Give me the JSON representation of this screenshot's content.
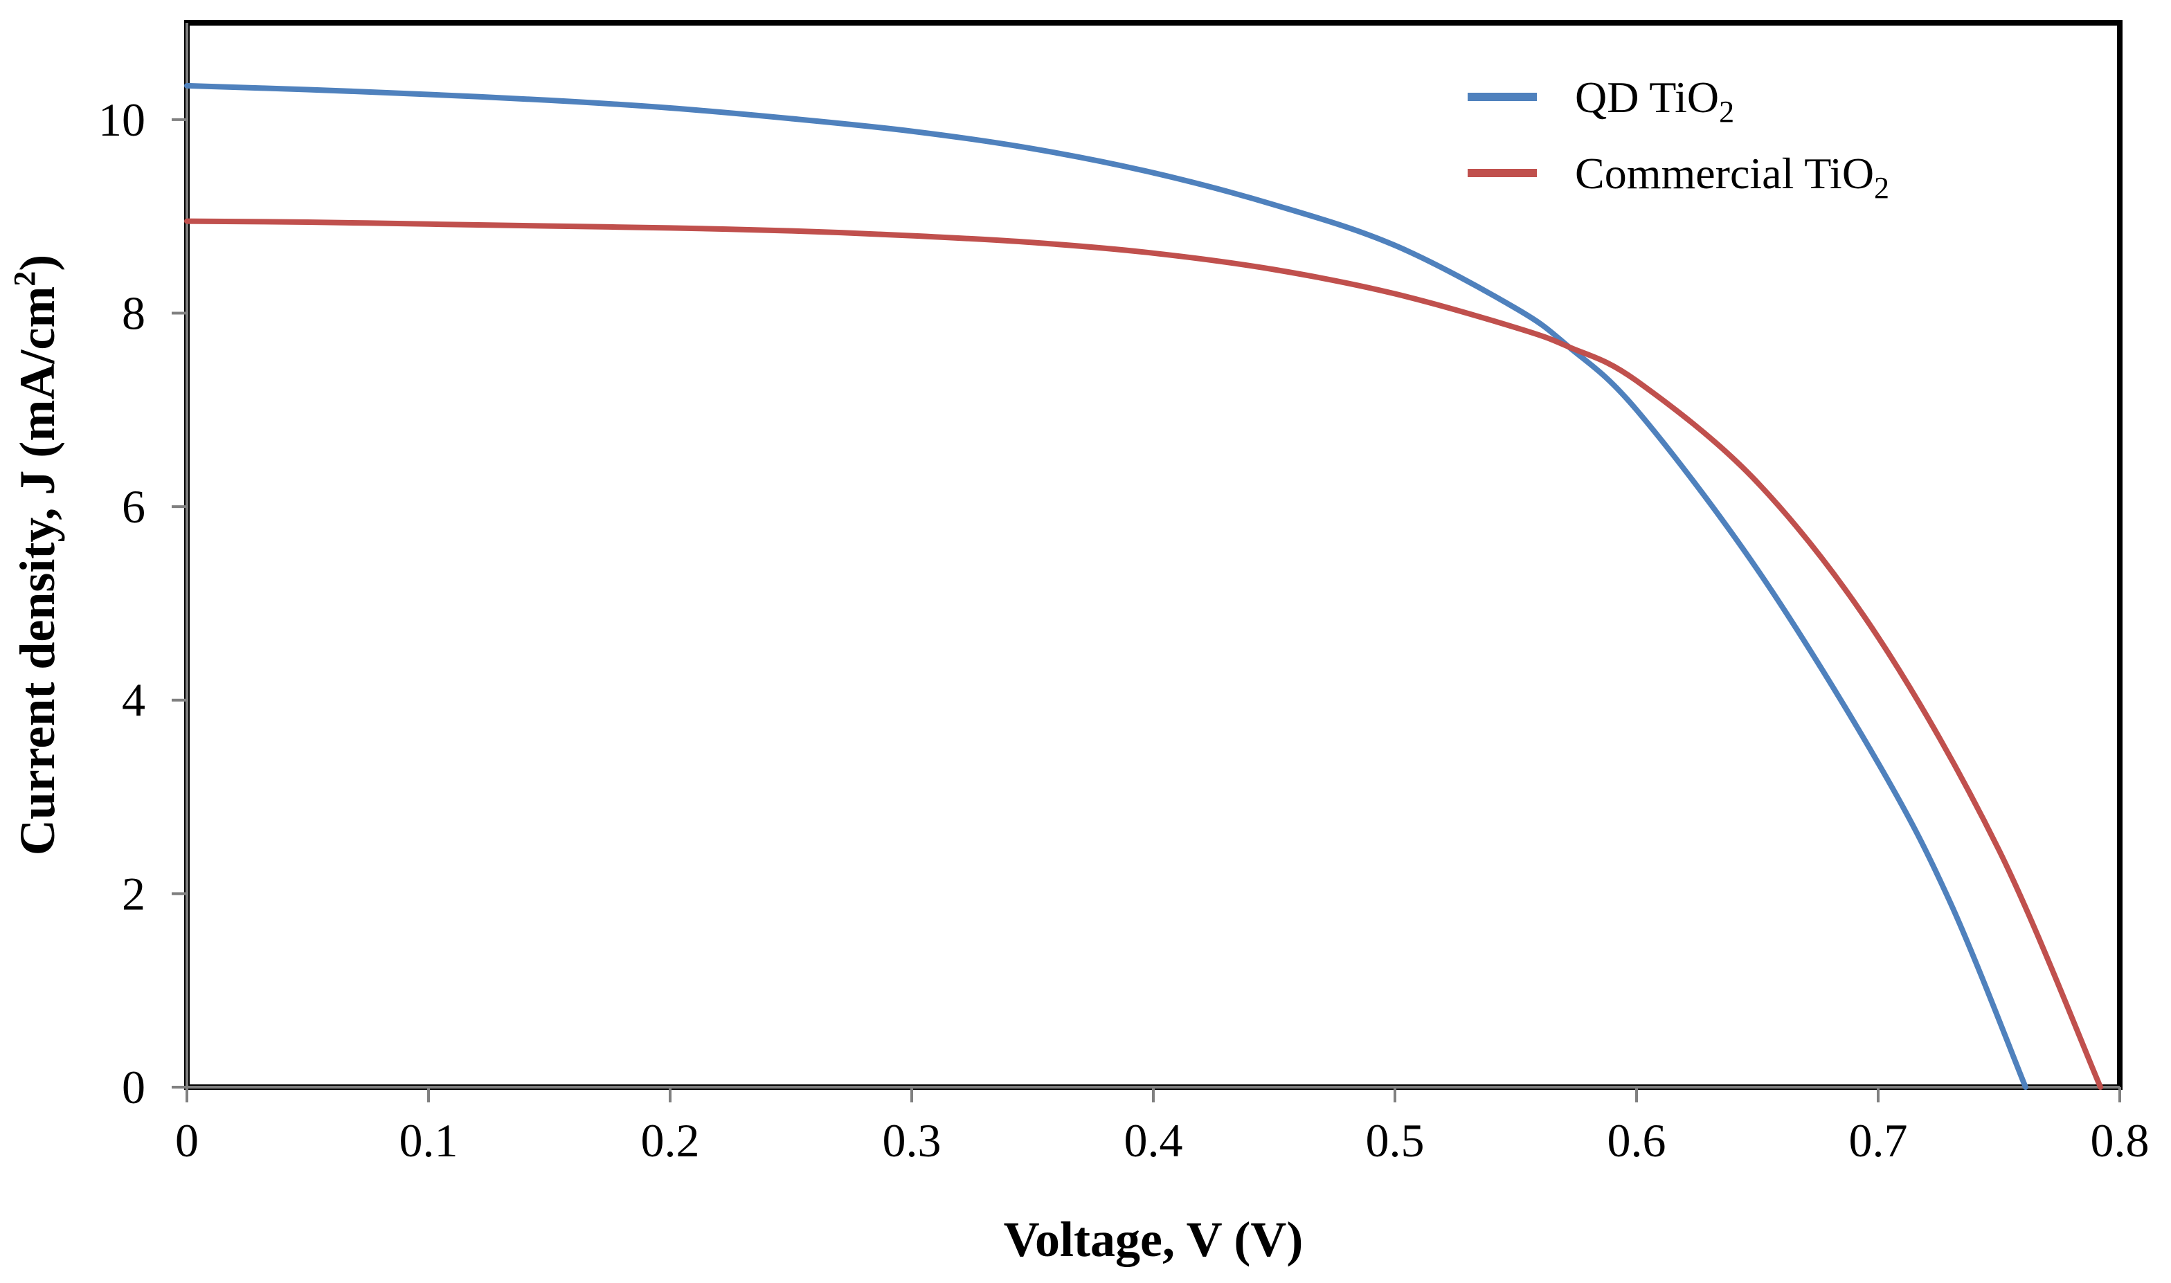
{
  "chart_data": {
    "type": "line",
    "title": "",
    "xlabel": "Voltage, V (V)",
    "ylabel_main": "Current density, J (mA/cm",
    "ylabel_sup": "2",
    "ylabel_close": ")",
    "xlim": [
      0,
      0.8
    ],
    "ylim": [
      0,
      11
    ],
    "xticks": [
      0,
      0.1,
      0.2,
      0.3,
      0.4,
      0.5,
      0.6,
      0.7,
      0.8
    ],
    "xtick_labels": [
      "0",
      "0.1",
      "0.2",
      "0.3",
      "0.4",
      "0.5",
      "0.6",
      "0.7",
      "0.8"
    ],
    "yticks": [
      0,
      2,
      4,
      6,
      8,
      10
    ],
    "ytick_labels": [
      "0",
      "2",
      "4",
      "6",
      "8",
      "10"
    ],
    "grid": false,
    "legend_position": "top-right",
    "series": [
      {
        "name": "QD TiO2",
        "label_main": "QD TiO",
        "label_sub": "2",
        "color": "#4F81BD",
        "x": [
          0,
          0.05,
          0.1,
          0.15,
          0.2,
          0.25,
          0.3,
          0.35,
          0.4,
          0.45,
          0.5,
          0.55,
          0.572,
          0.6,
          0.65,
          0.7,
          0.73,
          0.761
        ],
        "y": [
          10.35,
          10.31,
          10.26,
          10.2,
          10.12,
          10.01,
          9.88,
          9.7,
          9.45,
          9.12,
          8.7,
          8.05,
          7.65,
          7.0,
          5.35,
          3.35,
          1.9,
          0
        ]
      },
      {
        "name": "Commercial TiO2",
        "label_main": "Commercial TiO",
        "label_sub": "2",
        "color": "#C0504D",
        "x": [
          0,
          0.05,
          0.1,
          0.15,
          0.2,
          0.25,
          0.3,
          0.35,
          0.4,
          0.45,
          0.5,
          0.55,
          0.572,
          0.6,
          0.65,
          0.7,
          0.75,
          0.792
        ],
        "y": [
          8.95,
          8.94,
          8.92,
          8.9,
          8.88,
          8.85,
          8.8,
          8.73,
          8.62,
          8.45,
          8.2,
          7.85,
          7.65,
          7.3,
          6.25,
          4.65,
          2.45,
          0
        ]
      }
    ]
  }
}
